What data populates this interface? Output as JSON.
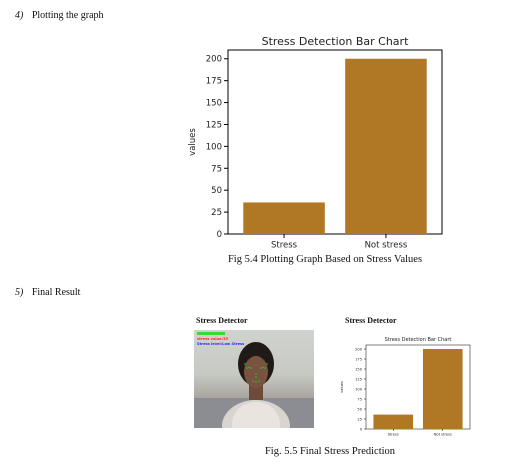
{
  "sections": [
    {
      "number": "4)",
      "title": "Plotting the graph"
    },
    {
      "number": "5)",
      "title": "Final Result"
    }
  ],
  "figure_5_4": {
    "caption": "Fig 5.4  Plotting Graph Based on Stress Values"
  },
  "figure_5_5": {
    "caption": "Fig. 5.5  Final Stress Prediction",
    "left_panel": {
      "title": "Stress Detector",
      "overlay_value_text": "stress value:35",
      "overlay_level_text": "Stress level:Low Stress",
      "colors": {
        "value_text": "#ff2a2a",
        "level_text": "#2a2aff",
        "bar": "#33dd33",
        "landmarks": "#22cc22"
      }
    },
    "right_panel": {
      "title": "Stress Detector"
    }
  },
  "chart_data": [
    {
      "type": "bar",
      "title": "Stress Detection Bar Chart",
      "categories": [
        "Stress",
        "Not stress"
      ],
      "values": [
        36,
        200
      ],
      "xlabel": "",
      "ylabel": "values",
      "ylim": [
        0,
        210
      ],
      "yticks": [
        0,
        25,
        50,
        75,
        100,
        125,
        150,
        175,
        200
      ],
      "bar_color": "#b07724",
      "grid": false
    },
    {
      "type": "bar",
      "title": "Stress Detection Bar Chart",
      "categories": [
        "Stress",
        "Not stress"
      ],
      "values": [
        36,
        200
      ],
      "xlabel": "",
      "ylabel": "values",
      "ylim": [
        0,
        210
      ],
      "yticks": [
        0,
        25,
        50,
        75,
        100,
        125,
        150,
        175,
        200
      ],
      "bar_color": "#b07724",
      "grid": false
    }
  ]
}
